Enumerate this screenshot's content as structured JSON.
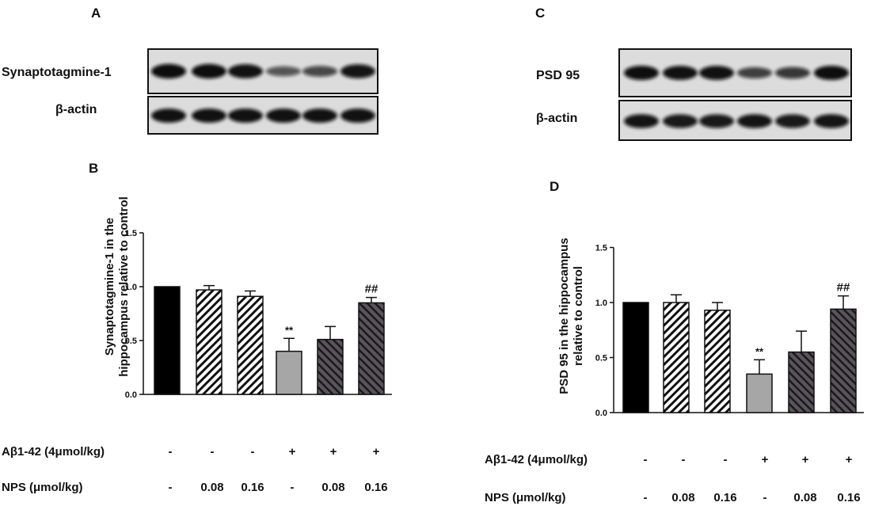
{
  "panel_labels": {
    "a": "A",
    "b": "B",
    "c": "C",
    "d": "D"
  },
  "blots": [
    {
      "id": "A",
      "rows": [
        {
          "label": "Synaptotagmine-1",
          "band_intensity": [
            0.95,
            0.95,
            0.9,
            0.45,
            0.55,
            0.88
          ]
        },
        {
          "label": "β-actin",
          "band_intensity": [
            0.9,
            0.9,
            0.9,
            0.9,
            0.9,
            0.9
          ]
        }
      ]
    },
    {
      "id": "C",
      "rows": [
        {
          "label": "PSD 95",
          "band_intensity": [
            0.92,
            0.9,
            0.9,
            0.6,
            0.65,
            0.92
          ]
        },
        {
          "label": "β-actin",
          "band_intensity": [
            0.88,
            0.85,
            0.85,
            0.88,
            0.85,
            0.88
          ]
        }
      ]
    }
  ],
  "chart_data": [
    {
      "id": "B",
      "type": "bar",
      "ylabel_lines": [
        "Synaptotagmine-1 in the",
        "hippocampus  relative to control"
      ],
      "ylim": [
        0,
        1.5
      ],
      "yticks": [
        "0.0",
        "0.5",
        "1.0",
        "1.5"
      ],
      "ytick_values": [
        0,
        0.5,
        1.0,
        1.5
      ],
      "values": [
        1.0,
        0.97,
        0.91,
        0.4,
        0.51,
        0.85
      ],
      "errors": [
        0.0,
        0.04,
        0.05,
        0.12,
        0.12,
        0.05
      ],
      "bar_styles": [
        "black",
        "hatch-light",
        "hatch-light",
        "gray",
        "hatch-dark",
        "hatch-dark"
      ],
      "annotations": [
        "",
        "",
        "",
        "**",
        "",
        "##"
      ],
      "conditions": [
        {
          "label": "Aβ1-42 (4μmol/kg)",
          "values": [
            "-",
            "-",
            "-",
            "+",
            "+",
            "+"
          ]
        },
        {
          "label": "NPS (μmol/kg)",
          "values": [
            "-",
            "0.08",
            "0.16",
            "-",
            "0.08",
            "0.16"
          ]
        }
      ]
    },
    {
      "id": "D",
      "type": "bar",
      "ylabel_lines": [
        "PSD 95 in the hippocampus",
        "relative to control"
      ],
      "ylim": [
        0,
        1.5
      ],
      "yticks": [
        "0.0",
        "0.5",
        "1.0",
        "1.5"
      ],
      "ytick_values": [
        0,
        0.5,
        1.0,
        1.5
      ],
      "values": [
        1.0,
        1.0,
        0.93,
        0.35,
        0.55,
        0.94
      ],
      "errors": [
        0.0,
        0.07,
        0.07,
        0.13,
        0.19,
        0.12
      ],
      "bar_styles": [
        "black",
        "hatch-light",
        "hatch-light",
        "gray",
        "hatch-dark",
        "hatch-dark"
      ],
      "annotations": [
        "",
        "",
        "",
        "**",
        "",
        "##"
      ],
      "conditions": [
        {
          "label": "Aβ1-42 (4μmol/kg)",
          "values": [
            "-",
            "-",
            "-",
            "+",
            "+",
            "+"
          ]
        },
        {
          "label": "NPS (μmol/kg)",
          "values": [
            "-",
            "0.08",
            "0.16",
            "-",
            "0.08",
            "0.16"
          ]
        }
      ]
    }
  ]
}
